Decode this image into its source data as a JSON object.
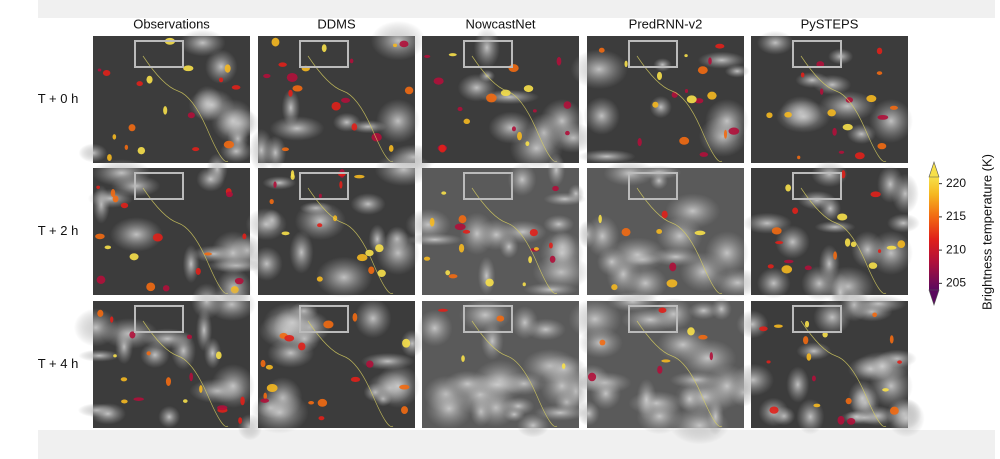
{
  "figure": {
    "columns": [
      "Observations",
      "DDMS",
      "NowcastNet",
      "PredRNN-v2",
      "PySTEPS"
    ],
    "rows": [
      "T + 0 h",
      "T + 2 h",
      "T + 4 h"
    ],
    "colorbar": {
      "label": "Brightness temperature (K)",
      "lim": [
        204,
        221
      ],
      "ticks": [
        205,
        210,
        215,
        220
      ]
    }
  }
}
